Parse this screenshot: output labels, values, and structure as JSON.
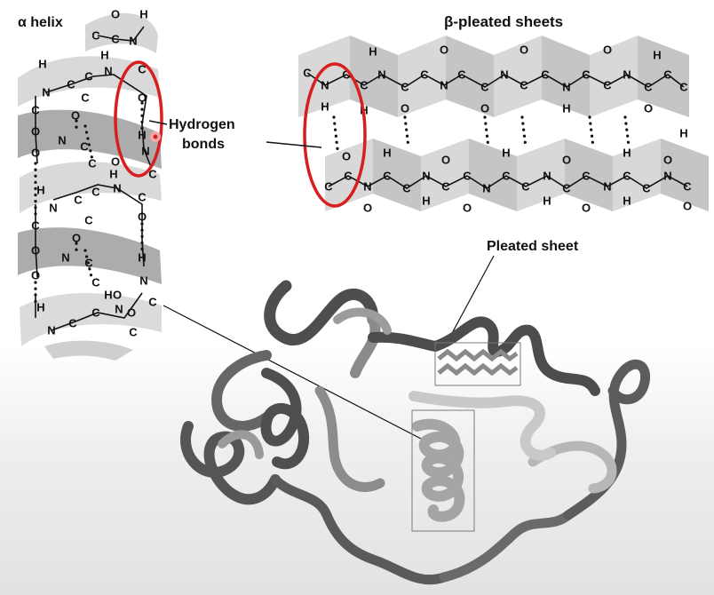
{
  "title_alpha": "α helix",
  "title_beta": "β-pleated sheets",
  "label_hydrogen_bonds_line1": "Hydrogen",
  "label_hydrogen_bonds_line2": "bonds",
  "label_pleated_sheet": "Pleated sheet",
  "colors": {
    "highlight": "#d81e1e",
    "ribbon_light": "#d4d4d4",
    "ribbon_dark": "#a9a9a9",
    "protein_ribbon": "#555555"
  }
}
